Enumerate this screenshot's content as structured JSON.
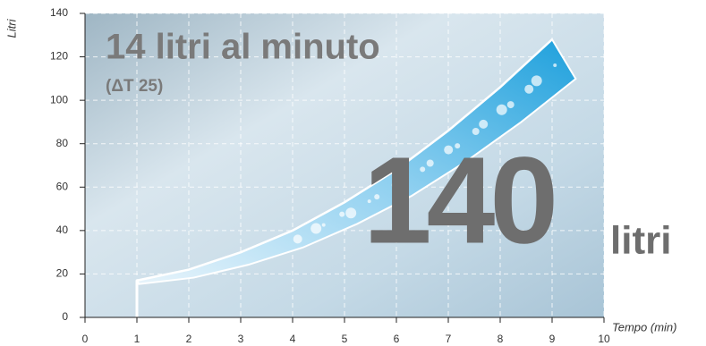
{
  "chart_data": {
    "type": "line",
    "title": "14 litri al minuto",
    "subtitle": "(ΔT 25)",
    "annotation_value": "140",
    "annotation_unit": "litri",
    "x_label": "Tempo (min)",
    "y_label": "Litri",
    "x": [
      1,
      2,
      3,
      4,
      5,
      6,
      7,
      8,
      9
    ],
    "values": [
      17,
      22,
      30,
      40,
      53,
      68,
      86,
      106,
      128
    ],
    "color": "#1ea0dc",
    "xlim": [
      0,
      10
    ],
    "xticks": [
      0,
      1,
      2,
      3,
      4,
      5,
      6,
      7,
      8,
      9,
      10
    ],
    "ylim": [
      0,
      140
    ],
    "yticks": [
      0,
      20,
      40,
      60,
      80,
      100,
      120,
      140
    ],
    "grid": true
  }
}
